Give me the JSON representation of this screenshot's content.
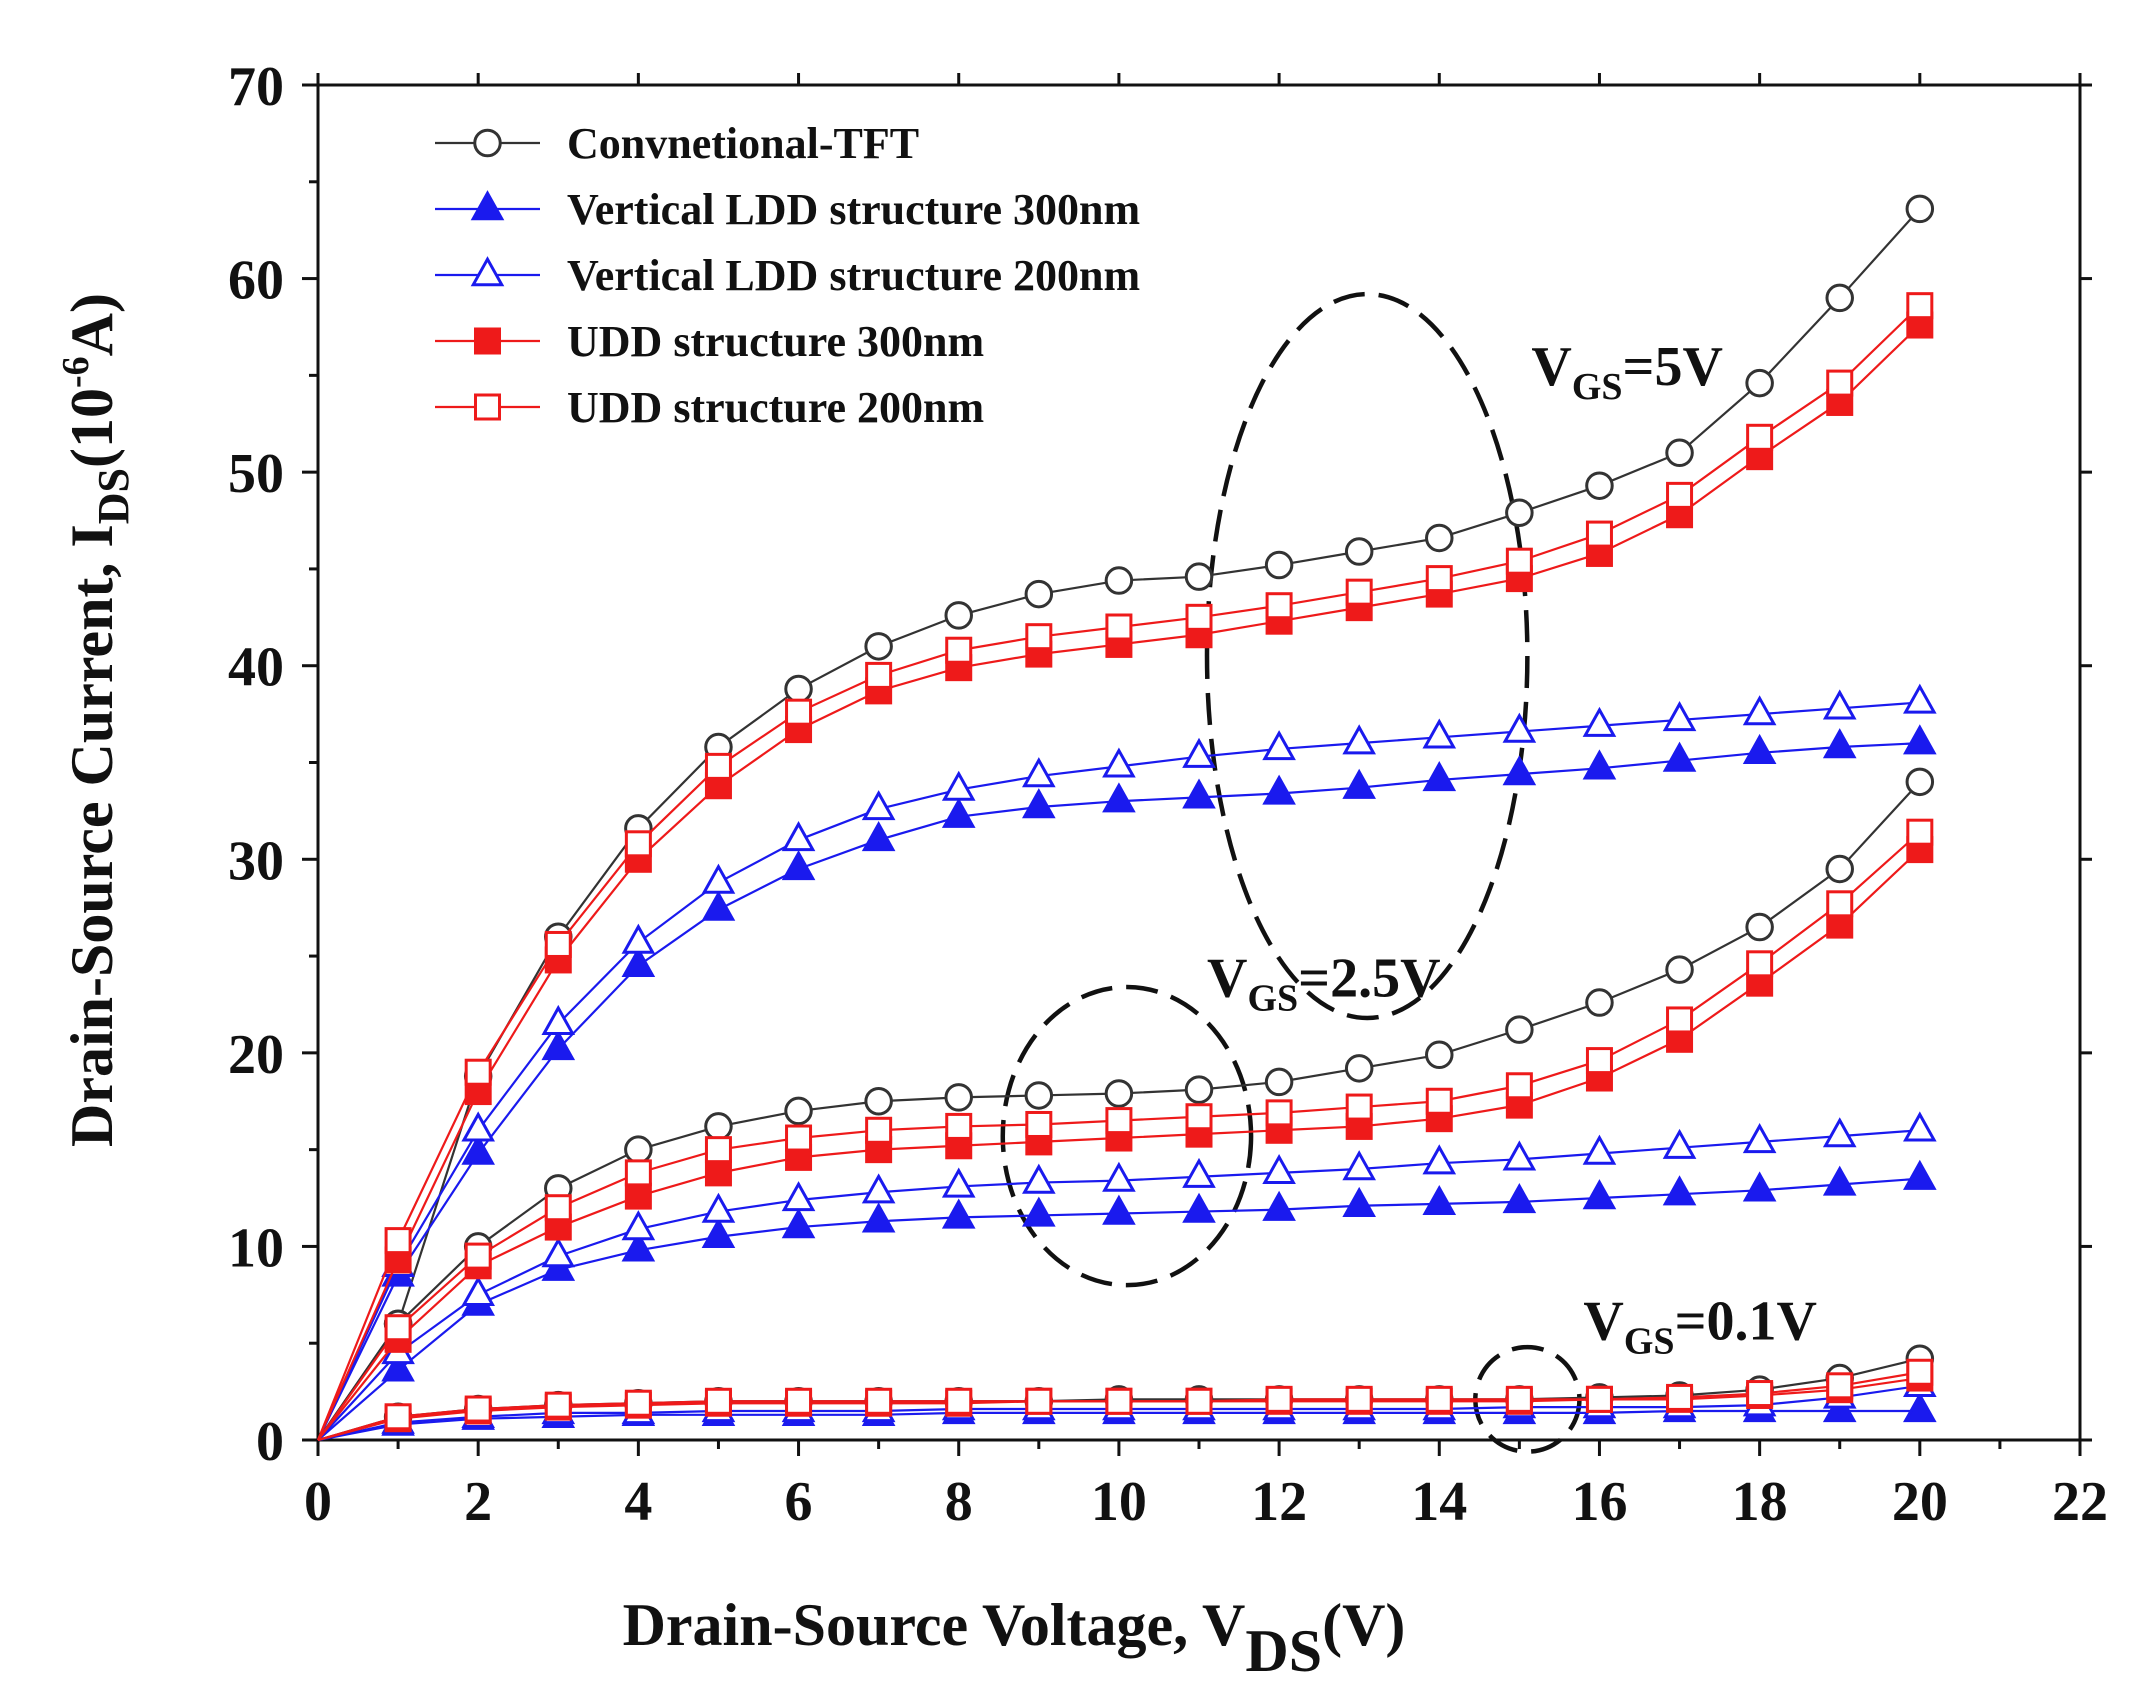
{
  "chart_data": {
    "type": "line",
    "title": "",
    "xlabel": {
      "main": "Drain-Source Voltage, V",
      "sub": "DS",
      "suffix": "(V)"
    },
    "ylabel": {
      "main": "Drain-Source Current, I",
      "sub": "DS",
      "mid": "(10",
      "sup": "-6",
      "suffix": "A)"
    },
    "xlim": [
      0,
      22
    ],
    "ylim": [
      0,
      70
    ],
    "xticks": [
      0,
      2,
      4,
      6,
      8,
      10,
      12,
      14,
      16,
      18,
      20,
      22
    ],
    "yticks": [
      0,
      10,
      20,
      30,
      40,
      50,
      60,
      70
    ],
    "legend_position": "top-left",
    "x": [
      0,
      1,
      2,
      3,
      4,
      5,
      6,
      7,
      8,
      9,
      10,
      11,
      12,
      13,
      14,
      15,
      16,
      17,
      18,
      19,
      20
    ],
    "series": [
      {
        "name": "Convnetional-TFT",
        "color": "#333333",
        "marker": "circle-open",
        "groups": [
          {
            "vgs": "5V",
            "values": [
              0,
              6,
              18.8,
              26,
              31.6,
              35.8,
              38.8,
              41,
              42.6,
              43.7,
              44.4,
              44.6,
              45.2,
              45.9,
              46.6,
              47.9,
              49.3,
              51,
              54.6,
              59,
              63.6
            ]
          },
          {
            "vgs": "2.5V",
            "values": [
              0,
              6,
              10,
              13,
              15,
              16.2,
              17,
              17.5,
              17.7,
              17.8,
              17.9,
              18.1,
              18.5,
              19.2,
              19.9,
              21.2,
              22.6,
              24.3,
              26.5,
              29.5,
              34
            ]
          },
          {
            "vgs": "0.1V",
            "values": [
              0,
              1.2,
              1.6,
              1.8,
              1.9,
              2,
              2,
              2,
              2,
              2,
              2.1,
              2.1,
              2.1,
              2.1,
              2.1,
              2.1,
              2.2,
              2.3,
              2.6,
              3.2,
              4.2
            ]
          }
        ]
      },
      {
        "name": "Vertical LDD structure 300nm",
        "color": "#1a1aee",
        "marker": "triangle-filled",
        "groups": [
          {
            "vgs": "5V",
            "values": [
              0,
              8.5,
              14.8,
              20.2,
              24.5,
              27.4,
              29.5,
              31,
              32.2,
              32.7,
              33,
              33.2,
              33.4,
              33.7,
              34.1,
              34.4,
              34.7,
              35.1,
              35.5,
              35.8,
              36
            ]
          },
          {
            "vgs": "2.5V",
            "values": [
              0,
              3.6,
              7,
              8.8,
              9.8,
              10.5,
              11,
              11.3,
              11.5,
              11.6,
              11.7,
              11.8,
              11.9,
              12.1,
              12.2,
              12.3,
              12.5,
              12.7,
              12.9,
              13.2,
              13.5
            ]
          },
          {
            "vgs": "0.1V",
            "values": [
              0,
              0.8,
              1.1,
              1.2,
              1.3,
              1.3,
              1.3,
              1.3,
              1.4,
              1.4,
              1.4,
              1.4,
              1.4,
              1.4,
              1.4,
              1.4,
              1.4,
              1.5,
              1.5,
              1.5,
              1.5
            ]
          }
        ]
      },
      {
        "name": "Vertical LDD structure 200nm",
        "color": "#1a1aee",
        "marker": "triangle-open",
        "groups": [
          {
            "vgs": "5V",
            "values": [
              0,
              9,
              16,
              21.5,
              25.7,
              28.8,
              31,
              32.6,
              33.6,
              34.3,
              34.8,
              35.3,
              35.7,
              36,
              36.3,
              36.6,
              36.9,
              37.2,
              37.5,
              37.8,
              38.1
            ]
          },
          {
            "vgs": "2.5V",
            "values": [
              0,
              4.5,
              7.5,
              9.5,
              10.9,
              11.8,
              12.4,
              12.8,
              13.1,
              13.3,
              13.4,
              13.6,
              13.8,
              14,
              14.3,
              14.5,
              14.8,
              15.1,
              15.4,
              15.7,
              16
            ]
          },
          {
            "vgs": "0.1V",
            "values": [
              0,
              0.9,
              1.2,
              1.4,
              1.4,
              1.5,
              1.5,
              1.5,
              1.6,
              1.6,
              1.6,
              1.6,
              1.6,
              1.6,
              1.6,
              1.7,
              1.7,
              1.7,
              1.8,
              2.2,
              2.8
            ]
          }
        ]
      },
      {
        "name": "UDD structure 300nm",
        "color": "#ee1a1a",
        "marker": "square-filled",
        "groups": [
          {
            "vgs": "5V",
            "values": [
              0,
              9.3,
              18,
              24.8,
              30,
              33.8,
              36.7,
              38.7,
              39.9,
              40.6,
              41.1,
              41.6,
              42.3,
              43,
              43.7,
              44.5,
              45.8,
              47.8,
              50.8,
              53.6,
              57.6
            ]
          },
          {
            "vgs": "2.5V",
            "values": [
              0,
              5.2,
              9,
              11,
              12.6,
              13.8,
              14.6,
              15,
              15.2,
              15.4,
              15.6,
              15.8,
              16,
              16.2,
              16.6,
              17.3,
              18.7,
              20.7,
              23.6,
              26.6,
              30.5
            ]
          },
          {
            "vgs": "0.1V",
            "values": [
              0,
              1.1,
              1.5,
              1.7,
              1.8,
              1.9,
              1.9,
              1.9,
              1.9,
              2,
              2,
              2,
              2,
              2,
              2,
              2,
              2.1,
              2.1,
              2.3,
              2.6,
              3.2
            ]
          }
        ]
      },
      {
        "name": "UDD structure 200nm",
        "color": "#ee1a1a",
        "marker": "square-open",
        "groups": [
          {
            "vgs": "5V",
            "values": [
              0,
              10.3,
              19,
              25.6,
              30.8,
              34.8,
              37.6,
              39.5,
              40.8,
              41.5,
              42,
              42.5,
              43.1,
              43.8,
              44.5,
              45.4,
              46.8,
              48.8,
              51.8,
              54.6,
              58.6
            ]
          },
          {
            "vgs": "2.5V",
            "values": [
              0,
              5.8,
              9.5,
              12,
              13.8,
              15,
              15.6,
              16,
              16.2,
              16.3,
              16.5,
              16.7,
              16.9,
              17.2,
              17.5,
              18.3,
              19.6,
              21.7,
              24.6,
              27.7,
              31.4
            ]
          },
          {
            "vgs": "0.1V",
            "values": [
              0,
              1.2,
              1.6,
              1.8,
              1.9,
              2,
              2,
              2,
              2,
              2,
              2,
              2,
              2.1,
              2.1,
              2.1,
              2.1,
              2.1,
              2.2,
              2.4,
              2.8,
              3.5
            ]
          }
        ]
      }
    ],
    "annotations": [
      {
        "main": "V",
        "sub": "GS",
        "suffix": "=5V",
        "anchor_x": 15.15,
        "anchor_y": 54.5,
        "ellipse": {
          "cx": 13.1,
          "cy": 40.5,
          "rx": 2.0,
          "ry": 18.7
        }
      },
      {
        "main": "V",
        "sub": "GS",
        "suffix": "=2.5V",
        "anchor_x": 11.1,
        "anchor_y": 22.9,
        "ellipse": {
          "cx": 10.1,
          "cy": 15.7,
          "rx": 1.55,
          "ry": 7.7
        }
      },
      {
        "main": "V",
        "sub": "GS",
        "suffix": "=0.1V",
        "anchor_x": 15.8,
        "anchor_y": 5.2,
        "ellipse": {
          "cx": 15.1,
          "cy": 2.1,
          "rx": 0.65,
          "ry": 2.7
        }
      }
    ]
  }
}
